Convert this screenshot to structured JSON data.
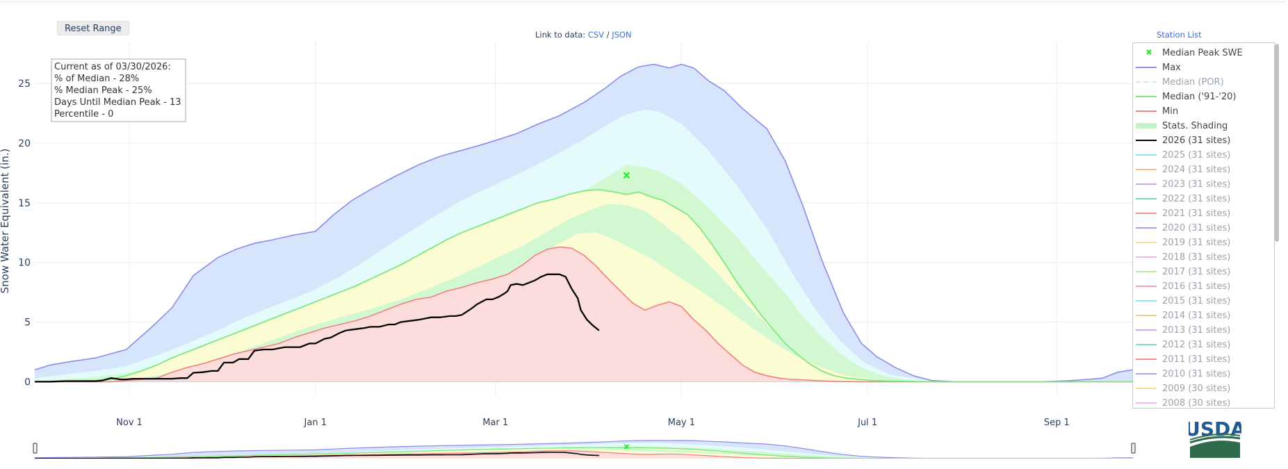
{
  "toolbar": {
    "reset_label": "Reset Range"
  },
  "data_links": {
    "prefix": "Link to data:",
    "csv": "CSV",
    "sep": "/",
    "json": "JSON"
  },
  "station_list_label": "Station List",
  "logo_text": "USDA",
  "info_box": {
    "line1": "Current as of 03/30/2026:",
    "line2": "% of Median - 28%",
    "line3": "% Median Peak - 25%",
    "line4": "Days Until Median Peak - 13",
    "line5": "Percentile - 0"
  },
  "colors": {
    "max": "#8c8ce8",
    "min": "#f08080",
    "median": "#7ee87e",
    "current": "#000000",
    "peak_marker": "#33e633",
    "band_outer": "#d6e5fb",
    "band_upper": "#e4fbfb",
    "band_mid": "#d2f8d2",
    "band_lower": "#fcfcd2",
    "band_low": "#fddcdc"
  },
  "legend": [
    {
      "label": "Median Peak SWE",
      "kind": "marker",
      "color": "#33e633",
      "faded": false
    },
    {
      "label": "Max",
      "kind": "line",
      "color": "#8c8ce8",
      "faded": false
    },
    {
      "label": "Median (POR)",
      "kind": "dash",
      "color": "#cdefcd",
      "faded": true
    },
    {
      "label": "Median ('91-'20)",
      "kind": "line",
      "color": "#7ee87e",
      "faded": false
    },
    {
      "label": "Min",
      "kind": "line",
      "color": "#f08080",
      "faded": false
    },
    {
      "label": "Stats. Shading",
      "kind": "band",
      "color": "#c6f3c6",
      "faded": false
    },
    {
      "label": "2026 (31 sites)",
      "kind": "line",
      "color": "#000000",
      "faded": false
    },
    {
      "label": "2025 (31 sites)",
      "kind": "line",
      "color": "#8fe8e8",
      "faded": true
    },
    {
      "label": "2024 (31 sites)",
      "kind": "line",
      "color": "#f6c08a",
      "faded": true
    },
    {
      "label": "2023 (31 sites)",
      "kind": "line",
      "color": "#c8a6f0",
      "faded": true
    },
    {
      "label": "2022 (31 sites)",
      "kind": "line",
      "color": "#78d8b8",
      "faded": true
    },
    {
      "label": "2021 (31 sites)",
      "kind": "line",
      "color": "#f09090",
      "faded": true
    },
    {
      "label": "2020 (31 sites)",
      "kind": "line",
      "color": "#a0a0f0",
      "faded": true
    },
    {
      "label": "2019 (31 sites)",
      "kind": "line",
      "color": "#f6dc90",
      "faded": true
    },
    {
      "label": "2018 (31 sites)",
      "kind": "line",
      "color": "#f4b0f4",
      "faded": true
    },
    {
      "label": "2017 (31 sites)",
      "kind": "line",
      "color": "#b8ec98",
      "faded": true
    },
    {
      "label": "2016 (31 sites)",
      "kind": "line",
      "color": "#f4a0b0",
      "faded": true
    },
    {
      "label": "2015 (31 sites)",
      "kind": "line",
      "color": "#90e8ec",
      "faded": true
    },
    {
      "label": "2014 (31 sites)",
      "kind": "line",
      "color": "#f6c890",
      "faded": true
    },
    {
      "label": "2013 (31 sites)",
      "kind": "line",
      "color": "#d0a8f0",
      "faded": true
    },
    {
      "label": "2012 (31 sites)",
      "kind": "line",
      "color": "#80dcc0",
      "faded": true
    },
    {
      "label": "2011 (31 sites)",
      "kind": "line",
      "color": "#f08c8c",
      "faded": true
    },
    {
      "label": "2010 (31 sites)",
      "kind": "line",
      "color": "#a8a8f0",
      "faded": true
    },
    {
      "label": "2009 (30 sites)",
      "kind": "line",
      "color": "#f4dc98",
      "faded": true
    },
    {
      "label": "2008 (30 sites)",
      "kind": "line",
      "color": "#f4b8f4",
      "faded": true
    }
  ],
  "chart_data": {
    "type": "area",
    "title": "",
    "xlabel": "",
    "ylabel": "Snow Water Equivalent (in.)",
    "ylim": [
      -1.2,
      28.5
    ],
    "yticks": [
      0,
      5,
      10,
      15,
      20,
      25
    ],
    "xlim_day": [
      0,
      360
    ],
    "x_unit": "days since Oct 1",
    "xtick_days": [
      31,
      92,
      151,
      212,
      273,
      335
    ],
    "xtick_labels": [
      "Nov  1",
      "Jan  1",
      "Mar  1",
      "May  1",
      "Jul  1",
      "Sep  1"
    ],
    "median_peak": {
      "day": 194,
      "value": 17.3
    },
    "series": [
      {
        "name": "Max",
        "x": [
          0,
          5,
          12,
          20,
          30,
          38,
          45,
          52,
          60,
          66,
          72,
          78,
          85,
          92,
          98,
          104,
          110,
          118,
          126,
          133,
          140,
          147,
          152,
          158,
          165,
          172,
          180,
          187,
          192,
          198,
          203,
          208,
          212,
          216,
          221,
          226,
          232,
          240,
          246,
          252,
          258,
          265,
          271,
          276,
          282,
          288,
          294,
          302,
          310,
          320,
          330,
          340,
          345,
          350,
          355,
          360
        ],
        "values": [
          1.0,
          1.4,
          1.7,
          2.0,
          2.7,
          4.5,
          6.2,
          8.9,
          10.4,
          11.1,
          11.6,
          11.9,
          12.3,
          12.6,
          14.0,
          15.2,
          16.1,
          17.2,
          18.2,
          18.9,
          19.4,
          19.9,
          20.3,
          20.8,
          21.6,
          22.3,
          23.4,
          24.6,
          25.6,
          26.4,
          26.6,
          26.3,
          26.6,
          26.3,
          25.2,
          24.4,
          22.9,
          21.2,
          18.5,
          14.6,
          10.2,
          5.8,
          3.2,
          2.1,
          1.2,
          0.5,
          0.1,
          0.0,
          0.0,
          0.0,
          0.0,
          0.1,
          0.2,
          0.3,
          0.8,
          1.0
        ]
      },
      {
        "name": "90th Percentile",
        "x": [
          0,
          10,
          20,
          30,
          40,
          50,
          60,
          70,
          80,
          90,
          100,
          110,
          120,
          130,
          140,
          150,
          160,
          170,
          180,
          188,
          194,
          200,
          205,
          212,
          220,
          230,
          240,
          248,
          256,
          264,
          272,
          280,
          290,
          300,
          310,
          320,
          340,
          360
        ],
        "values": [
          0.3,
          0.6,
          0.9,
          1.3,
          2.2,
          3.2,
          4.3,
          5.5,
          6.5,
          7.5,
          8.8,
          10.4,
          12.1,
          13.7,
          15.2,
          16.4,
          17.6,
          18.9,
          20.3,
          21.6,
          22.4,
          22.8,
          22.6,
          21.6,
          19.6,
          16.5,
          12.8,
          9.2,
          6.0,
          3.4,
          1.6,
          0.6,
          0.2,
          0.05,
          0,
          0,
          0,
          0
        ]
      },
      {
        "name": "70th Percentile",
        "x": [
          0,
          10,
          20,
          30,
          40,
          50,
          60,
          70,
          80,
          90,
          100,
          110,
          120,
          130,
          140,
          150,
          160,
          170,
          180,
          188,
          194,
          200,
          205,
          212,
          220,
          230,
          238,
          246,
          252,
          258,
          264,
          270,
          278,
          286,
          295,
          305,
          320,
          360
        ],
        "values": [
          0.1,
          0.2,
          0.4,
          0.7,
          1.3,
          2.2,
          3.2,
          4.2,
          5.1,
          6.1,
          7.1,
          8.2,
          9.5,
          10.9,
          12.0,
          13.0,
          13.9,
          14.8,
          16.0,
          17.2,
          18.2,
          18.0,
          17.6,
          16.6,
          14.8,
          12.2,
          9.7,
          7.4,
          5.4,
          3.8,
          2.4,
          1.3,
          0.5,
          0.15,
          0.03,
          0,
          0,
          0
        ]
      },
      {
        "name": "Median ('91-'20)",
        "x": [
          0,
          10,
          20,
          25,
          30,
          35,
          40,
          45,
          50,
          55,
          60,
          65,
          70,
          75,
          80,
          85,
          90,
          95,
          100,
          105,
          110,
          115,
          120,
          125,
          130,
          135,
          140,
          145,
          150,
          155,
          160,
          165,
          170,
          175,
          180,
          185,
          190,
          194,
          198,
          202,
          206,
          210,
          214,
          218,
          222,
          226,
          230,
          234,
          238,
          242,
          246,
          250,
          254,
          258,
          262,
          266,
          270,
          275,
          280,
          290,
          300,
          320,
          360
        ],
        "values": [
          0,
          0.05,
          0.1,
          0.2,
          0.5,
          0.9,
          1.4,
          2.0,
          2.5,
          3.0,
          3.5,
          4.0,
          4.5,
          5.0,
          5.5,
          6.0,
          6.5,
          7.0,
          7.5,
          8.0,
          8.6,
          9.2,
          9.8,
          10.5,
          11.2,
          11.9,
          12.5,
          13.0,
          13.5,
          14.0,
          14.5,
          15.0,
          15.3,
          15.7,
          16.0,
          16.1,
          15.9,
          15.7,
          15.9,
          15.5,
          15.2,
          14.6,
          14.0,
          12.9,
          11.5,
          10.0,
          8.4,
          7.0,
          5.6,
          4.4,
          3.2,
          2.3,
          1.5,
          0.9,
          0.5,
          0.3,
          0.2,
          0.1,
          0.05,
          0.01,
          0,
          0,
          0
        ]
      },
      {
        "name": "30th Percentile",
        "x": [
          0,
          20,
          30,
          40,
          50,
          60,
          70,
          80,
          90,
          100,
          110,
          120,
          130,
          140,
          150,
          160,
          168,
          175,
          182,
          188,
          194,
          200,
          206,
          212,
          218,
          224,
          230,
          236,
          242,
          248,
          254,
          260,
          270,
          280,
          300,
          360
        ],
        "values": [
          0,
          0.05,
          0.2,
          0.5,
          1.1,
          1.9,
          2.8,
          3.7,
          4.6,
          5.4,
          6.1,
          6.9,
          7.9,
          9.0,
          10.2,
          11.4,
          12.6,
          13.6,
          14.4,
          14.9,
          14.8,
          14.3,
          13.2,
          12.0,
          10.6,
          9.0,
          7.4,
          5.8,
          4.3,
          2.8,
          1.6,
          0.8,
          0.25,
          0.05,
          0,
          0
        ]
      },
      {
        "name": "10th Percentile",
        "x": [
          0,
          20,
          30,
          40,
          50,
          60,
          70,
          80,
          90,
          100,
          110,
          120,
          130,
          140,
          150,
          158,
          165,
          172,
          178,
          184,
          190,
          196,
          202,
          208,
          214,
          220,
          226,
          232,
          238,
          244,
          250,
          258,
          266,
          280,
          300,
          360
        ],
        "values": [
          0,
          0,
          0.1,
          0.3,
          0.7,
          1.2,
          1.8,
          2.5,
          3.2,
          4.0,
          4.7,
          5.5,
          6.3,
          7.2,
          8.2,
          9.2,
          10.4,
          11.6,
          12.4,
          12.5,
          11.9,
          11.1,
          10.3,
          9.3,
          8.3,
          7.3,
          6.2,
          5.1,
          4.0,
          3.0,
          2.1,
          1.2,
          0.5,
          0.05,
          0,
          0
        ]
      },
      {
        "name": "Min",
        "x": [
          0,
          25,
          30,
          40,
          45,
          50,
          55,
          60,
          65,
          70,
          75,
          80,
          85,
          90,
          95,
          100,
          105,
          110,
          115,
          120,
          125,
          130,
          135,
          140,
          145,
          150,
          155,
          160,
          164,
          168,
          172,
          176,
          180,
          184,
          188,
          192,
          196,
          200,
          204,
          208,
          212,
          216,
          220,
          224,
          228,
          232,
          236,
          240,
          244,
          248,
          252,
          256,
          260,
          264,
          270,
          280,
          300,
          360
        ],
        "values": [
          0,
          0,
          0.1,
          0.3,
          0.8,
          1.2,
          1.5,
          1.9,
          2.3,
          2.6,
          2.9,
          3.2,
          3.7,
          4.1,
          4.5,
          4.8,
          5.1,
          5.5,
          6.0,
          6.5,
          6.9,
          7.1,
          7.6,
          7.9,
          8.3,
          8.6,
          9.0,
          9.8,
          10.6,
          11.1,
          11.3,
          11.2,
          10.6,
          9.7,
          8.6,
          7.6,
          6.6,
          6.0,
          6.4,
          6.7,
          6.3,
          5.2,
          4.3,
          3.2,
          2.3,
          1.4,
          0.8,
          0.5,
          0.3,
          0.2,
          0.15,
          0.1,
          0.05,
          0.02,
          0,
          0,
          0,
          0
        ]
      },
      {
        "name": "2026 (31 sites)",
        "x": [
          0,
          5,
          10,
          15,
          20,
          22,
          25,
          28,
          30,
          32,
          35,
          40,
          45,
          48,
          50,
          52,
          55,
          58,
          60,
          62,
          65,
          67,
          70,
          72,
          75,
          78,
          80,
          82,
          85,
          87,
          90,
          92,
          95,
          97,
          100,
          102,
          105,
          108,
          110,
          113,
          116,
          118,
          120,
          123,
          126,
          128,
          130,
          133,
          136,
          138,
          140,
          143,
          145,
          148,
          150,
          152,
          154,
          155,
          156,
          158,
          160,
          162,
          164,
          166,
          168,
          170,
          172,
          174,
          176,
          178,
          179,
          181,
          183,
          185
        ],
        "values": [
          0.0,
          0.0,
          0.05,
          0.05,
          0.05,
          0.1,
          0.3,
          0.2,
          0.2,
          0.25,
          0.25,
          0.25,
          0.25,
          0.3,
          0.3,
          0.75,
          0.8,
          0.9,
          0.9,
          1.6,
          1.6,
          1.9,
          1.9,
          2.6,
          2.7,
          2.7,
          2.8,
          2.9,
          2.9,
          2.9,
          3.2,
          3.2,
          3.6,
          3.7,
          4.1,
          4.3,
          4.4,
          4.5,
          4.6,
          4.6,
          4.8,
          4.8,
          5.0,
          5.1,
          5.2,
          5.3,
          5.4,
          5.4,
          5.5,
          5.5,
          5.6,
          6.1,
          6.5,
          6.9,
          6.9,
          7.1,
          7.4,
          7.6,
          8.1,
          8.2,
          8.1,
          8.3,
          8.5,
          8.8,
          9.0,
          9.0,
          9.0,
          8.8,
          7.8,
          7.0,
          6.0,
          5.2,
          4.7,
          4.3
        ]
      }
    ]
  }
}
